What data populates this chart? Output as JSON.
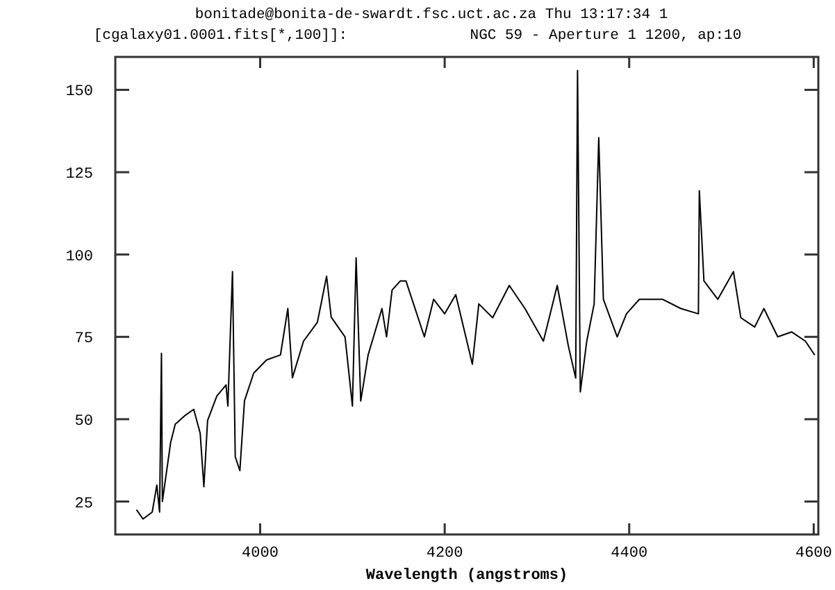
{
  "chart_data": {
    "type": "line",
    "title": "bonitade@bonita-de-swardt.fsc.uct.ac.za Thu 13:17:34 1",
    "subtitle": "[cgalaxy01.0001.fits[*,100]]:              NGC 59 - Aperture 1 1200, ap:10",
    "xlabel": "Wavelength (angstroms)",
    "x": [
      3866,
      3873,
      3883,
      3888,
      3891,
      3893,
      3894,
      3903,
      3908,
      3918,
      3928,
      3935,
      3939,
      3943,
      3953,
      3963,
      3965,
      3970,
      3973,
      3978,
      3983,
      3993,
      4007,
      4022,
      4030,
      4035,
      4047,
      4062,
      4072,
      4077,
      4092,
      4100,
      4104,
      4109,
      4117,
      4132,
      4137,
      4143,
      4152,
      4158,
      4178,
      4188,
      4200,
      4212,
      4230,
      4237,
      4252,
      4270,
      4287,
      4307,
      4322,
      4334,
      4342,
      4344,
      4347,
      4354,
      4362,
      4367,
      4372,
      4387,
      4397,
      4411,
      4436,
      4456,
      4475,
      4476,
      4481,
      4496,
      4513,
      4521,
      4536,
      4546,
      4561,
      4576,
      4591,
      4601
    ],
    "series": [
      {
        "color": "#000000",
        "values": [
          22.5,
          19.7,
          21.8,
          30,
          21.8,
          70,
          25,
          43,
          48.5,
          51,
          53,
          45.7,
          29.5,
          49.6,
          57,
          60.4,
          54,
          94.8,
          38.6,
          34.4,
          55.6,
          64,
          68,
          69.5,
          83.6,
          62.6,
          73.7,
          79.4,
          93.4,
          81,
          75,
          54,
          99,
          55.5,
          69.5,
          83.6,
          75,
          89.2,
          92,
          92,
          75,
          86.4,
          82,
          87.8,
          66.7,
          85,
          80.8,
          90.6,
          83.6,
          73.7,
          90.6,
          72.3,
          62.5,
          155.9,
          58.3,
          73.7,
          85,
          135.5,
          86.4,
          75,
          82,
          86.4,
          86.4,
          83.6,
          82,
          119.4,
          92,
          86.4,
          94.8,
          80.8,
          78,
          83.6,
          75,
          76.5,
          73.7,
          69.5
        ]
      }
    ],
    "xlim": [
      3843,
      4605
    ],
    "ylim": [
      15,
      160
    ],
    "xticks": [
      4000,
      4200,
      4400,
      4600
    ],
    "yticks": [
      25,
      50,
      75,
      100,
      125,
      150
    ],
    "grid": false,
    "line_style": "solid",
    "marker": "none"
  }
}
